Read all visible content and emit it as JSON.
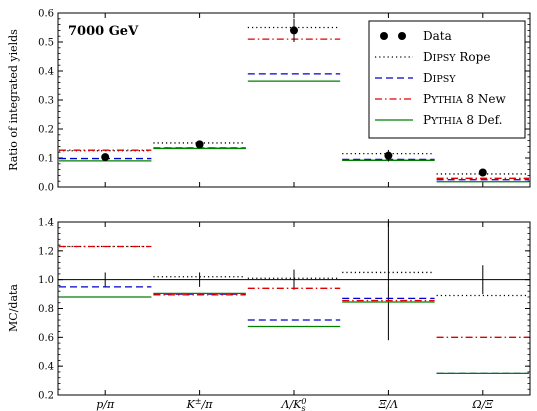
{
  "chart_data": [
    {
      "type": "step-ratio",
      "annotation": "7000 GeV",
      "ylabel": "Ratio of integrated yields",
      "ylim": [
        0,
        0.6
      ],
      "yticks": [
        "0.0",
        "0.1",
        "0.2",
        "0.3",
        "0.4",
        "0.5",
        "0.6"
      ],
      "categories": [
        "p/π",
        "K±/π",
        "Λ/K0s",
        "Ξ/Λ",
        "Ω/Ξ"
      ],
      "legend": {
        "position": "top-right",
        "entries": [
          "Data",
          "DIPSY Rope",
          "DIPSY",
          "PYTHIA 8 New",
          "PYTHIA 8 Def."
        ]
      },
      "data": {
        "name": "Data",
        "values": [
          0.103,
          0.147,
          0.54,
          0.108,
          0.05
        ],
        "errors": [
          0.005,
          0.008,
          0.04,
          0.02,
          0.005
        ]
      },
      "series": [
        {
          "name": "DIPSY Rope",
          "style": "dotted",
          "color": "#000000",
          "values": [
            0.125,
            0.152,
            0.55,
            0.115,
            0.045
          ]
        },
        {
          "name": "DIPSY",
          "style": "dashed",
          "color": "#0000cc",
          "values": [
            0.098,
            0.135,
            0.39,
            0.095,
            0.025
          ]
        },
        {
          "name": "PYTHIA 8 New",
          "style": "dashdot",
          "color": "#e00000",
          "values": [
            0.127,
            0.134,
            0.51,
            0.092,
            0.03
          ]
        },
        {
          "name": "PYTHIA 8 Def.",
          "style": "solid",
          "color": "#008000",
          "values": [
            0.09,
            0.133,
            0.365,
            0.092,
            0.018
          ]
        }
      ]
    },
    {
      "type": "step-ratio",
      "ylabel": "MC/data",
      "ylim": [
        0.2,
        1.4
      ],
      "yticks": [
        "0.2",
        "0.4",
        "0.6",
        "0.8",
        "1.0",
        "1.2",
        "1.4"
      ],
      "reference_line": 1.0,
      "categories": [
        "p/π",
        "K±/π",
        "Λ/K0s",
        "Ξ/Λ",
        "Ω/Ξ"
      ],
      "data_errors": [
        0.05,
        0.05,
        0.07,
        0.42,
        0.1
      ],
      "series": [
        {
          "name": "DIPSY Rope",
          "style": "dotted",
          "color": "#000000",
          "values": [
            1.23,
            1.02,
            1.01,
            1.05,
            0.89
          ]
        },
        {
          "name": "DIPSY",
          "style": "dashed",
          "color": "#0000cc",
          "values": [
            0.95,
            0.9,
            0.72,
            0.87,
            0.35
          ]
        },
        {
          "name": "PYTHIA 8 New",
          "style": "dashdot",
          "color": "#e00000",
          "values": [
            1.23,
            0.895,
            0.94,
            0.855,
            0.6
          ]
        },
        {
          "name": "PYTHIA 8 Def.",
          "style": "solid",
          "color": "#008000",
          "values": [
            0.88,
            0.905,
            0.675,
            0.845,
            0.35
          ]
        }
      ]
    }
  ]
}
